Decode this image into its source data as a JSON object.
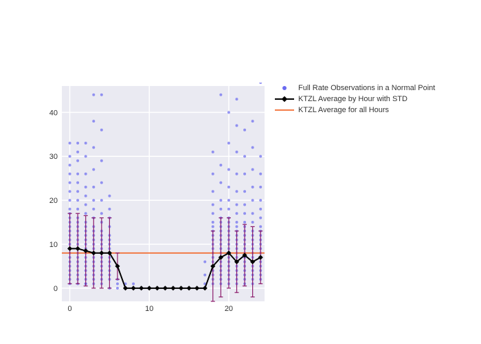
{
  "chart": {
    "type": "scatter+line+errorbar",
    "background_color": "#ffffff",
    "plot_background_color": "#eaeaf2",
    "grid_color": "#ffffff",
    "xlim": [
      -1,
      24.5
    ],
    "ylim": [
      -3,
      46
    ],
    "xticks": [
      0,
      10,
      20
    ],
    "yticks": [
      0,
      10,
      20,
      30,
      40
    ],
    "label_fontsize": 11,
    "scatter": {
      "color": "#6a6af0",
      "marker": "circle",
      "marker_size": 4,
      "opacity": 0.7,
      "x": [
        0,
        0,
        0,
        0,
        0,
        0,
        0,
        0,
        0,
        0,
        0,
        0,
        0,
        0,
        0,
        0,
        0,
        0,
        0,
        0,
        0,
        0,
        0,
        0,
        0,
        1,
        1,
        1,
        1,
        1,
        1,
        1,
        1,
        1,
        1,
        1,
        1,
        1,
        1,
        1,
        1,
        1,
        1,
        1,
        1,
        1,
        1,
        1,
        1,
        2,
        2,
        2,
        2,
        2,
        2,
        2,
        2,
        2,
        2,
        2,
        2,
        2,
        2,
        2,
        2,
        2,
        2,
        2,
        2,
        2,
        2,
        2,
        3,
        3,
        3,
        3,
        3,
        3,
        3,
        3,
        3,
        3,
        3,
        3,
        3,
        3,
        3,
        3,
        3,
        3,
        3,
        3,
        3,
        3,
        4,
        4,
        4,
        4,
        4,
        4,
        4,
        4,
        4,
        4,
        4,
        4,
        4,
        4,
        4,
        4,
        4,
        4,
        4,
        4,
        5,
        5,
        5,
        5,
        5,
        5,
        5,
        5,
        5,
        5,
        5,
        5,
        5,
        5,
        5,
        5,
        6,
        6,
        6,
        7,
        7,
        8,
        17,
        17,
        17,
        18,
        18,
        18,
        18,
        18,
        18,
        18,
        18,
        18,
        18,
        18,
        18,
        18,
        18,
        18,
        18,
        18,
        18,
        18,
        18,
        19,
        19,
        19,
        19,
        19,
        19,
        19,
        19,
        19,
        19,
        19,
        19,
        19,
        19,
        19,
        19,
        19,
        19,
        19,
        19,
        19,
        20,
        20,
        20,
        20,
        20,
        20,
        20,
        20,
        20,
        20,
        20,
        20,
        20,
        20,
        20,
        20,
        20,
        20,
        20,
        20,
        20,
        20,
        21,
        21,
        21,
        21,
        21,
        21,
        21,
        21,
        21,
        21,
        21,
        21,
        21,
        21,
        21,
        21,
        21,
        21,
        21,
        21,
        21,
        21,
        22,
        22,
        22,
        22,
        22,
        22,
        22,
        22,
        22,
        22,
        22,
        22,
        22,
        22,
        22,
        22,
        22,
        22,
        22,
        22,
        22,
        23,
        23,
        23,
        23,
        23,
        23,
        23,
        23,
        23,
        23,
        23,
        23,
        23,
        23,
        23,
        23,
        23,
        23,
        23,
        23,
        24,
        24,
        24,
        24,
        24,
        24,
        24,
        24,
        24,
        24,
        24,
        24,
        24,
        24,
        24,
        24,
        24,
        24,
        24,
        24
      ],
      "y": [
        1,
        2,
        3,
        4,
        5,
        6,
        7,
        8,
        9,
        10,
        11,
        12,
        13,
        14,
        15,
        16,
        17,
        18,
        20,
        22,
        24,
        26,
        28,
        30,
        33,
        1,
        2,
        3,
        4,
        5,
        6,
        7,
        8,
        9,
        10,
        11,
        12,
        13,
        14,
        15,
        16,
        18,
        20,
        22,
        24,
        26,
        29,
        31,
        33,
        1,
        2,
        3,
        4,
        5,
        6,
        7,
        8,
        9,
        10,
        11,
        12,
        13,
        14,
        15,
        17,
        19,
        21,
        23,
        26,
        30,
        33,
        1,
        2,
        3,
        4,
        5,
        6,
        7,
        8,
        9,
        10,
        11,
        12,
        13,
        14,
        16,
        18,
        20,
        23,
        27,
        32,
        38,
        44,
        1,
        2,
        3,
        4,
        5,
        6,
        7,
        8,
        9,
        10,
        11,
        12,
        13,
        15,
        17,
        20,
        24,
        29,
        36,
        44,
        1,
        2,
        3,
        4,
        5,
        6,
        7,
        8,
        9,
        10,
        11,
        12,
        14,
        16,
        18,
        21,
        0,
        1,
        2,
        0,
        1,
        0,
        1,
        3,
        6,
        1,
        2,
        3,
        4,
        5,
        6,
        7,
        8,
        9,
        10,
        11,
        12,
        13,
        14,
        15,
        17,
        19,
        22,
        26,
        31,
        1,
        2,
        3,
        4,
        5,
        6,
        7,
        8,
        9,
        10,
        11,
        12,
        13,
        14,
        15,
        16,
        18,
        20,
        24,
        28,
        44,
        1,
        2,
        3,
        4,
        5,
        6,
        7,
        8,
        9,
        10,
        11,
        12,
        13,
        14,
        15,
        16,
        18,
        20,
        23,
        27,
        33,
        40,
        1,
        2,
        3,
        4,
        5,
        6,
        7,
        8,
        9,
        10,
        11,
        12,
        13,
        14,
        15,
        17,
        19,
        22,
        26,
        31,
        37,
        43,
        1,
        2,
        3,
        4,
        5,
        6,
        7,
        8,
        9,
        10,
        11,
        12,
        13,
        14,
        15,
        17,
        19,
        22,
        26,
        30,
        36,
        1,
        2,
        3,
        4,
        5,
        6,
        7,
        8,
        9,
        10,
        11,
        12,
        13,
        15,
        17,
        20,
        23,
        27,
        32,
        38,
        1,
        2,
        3,
        4,
        5,
        6,
        7,
        8,
        9,
        10,
        11,
        12,
        13,
        14,
        16,
        18,
        20,
        23,
        26,
        30
      ]
    },
    "avg_by_hour": {
      "line_color": "#000000",
      "marker_color": "#000000",
      "marker": "diamond",
      "marker_size": 5,
      "line_width": 2,
      "errorbar_color": "#8b1a6a",
      "errorbar_capwidth": 6,
      "errorbar_linewidth": 1.2,
      "x": [
        0,
        1,
        2,
        3,
        4,
        5,
        6,
        7,
        8,
        9,
        10,
        11,
        12,
        13,
        14,
        15,
        16,
        17,
        18,
        19,
        20,
        21,
        22,
        23,
        24
      ],
      "y": [
        9,
        9,
        8.5,
        8,
        8,
        8,
        5,
        0,
        0,
        0,
        0,
        0,
        0,
        0,
        0,
        0,
        0,
        0,
        5,
        7,
        8,
        6,
        7.5,
        6,
        7
      ],
      "std": [
        8,
        8,
        8,
        8,
        8,
        8,
        3,
        0,
        0,
        0,
        0,
        0,
        0,
        0,
        0,
        0,
        0,
        0,
        8,
        9,
        8,
        7,
        7,
        8,
        6
      ]
    },
    "avg_line": {
      "value": 8,
      "color": "#f26a2e",
      "line_width": 1.8
    },
    "legend": {
      "fontsize": 11,
      "items": [
        {
          "label": "Full Rate Observations in a Normal Point",
          "type": "scatter",
          "color": "#6a6af0"
        },
        {
          "label": "KTZL Average by Hour with STD",
          "type": "line+marker",
          "color": "#000000"
        },
        {
          "label": "KTZL Average for all Hours",
          "type": "line",
          "color": "#f26a2e"
        }
      ]
    }
  }
}
